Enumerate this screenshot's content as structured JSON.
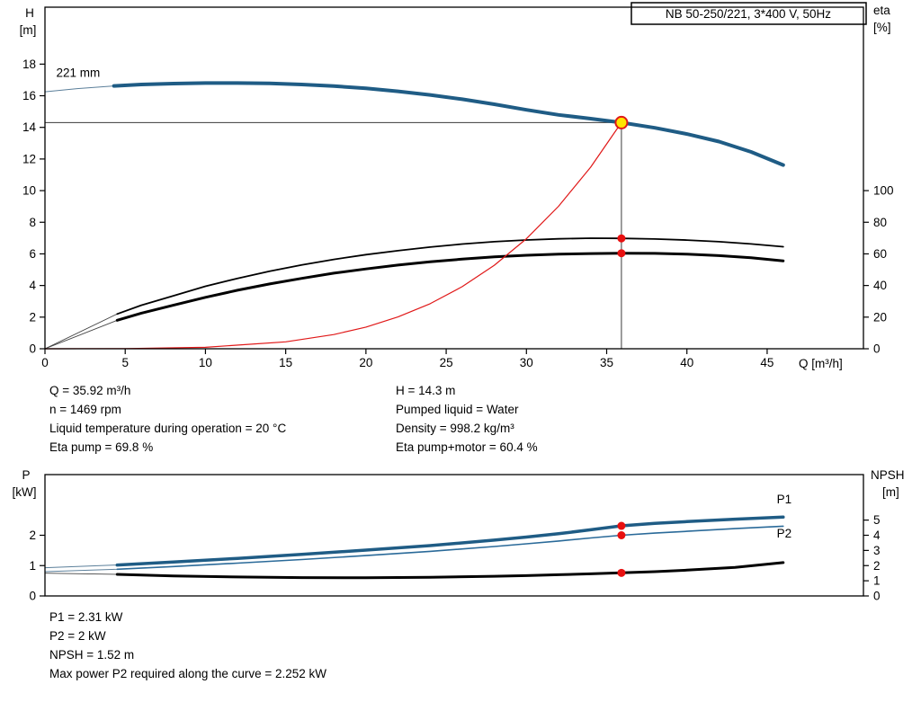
{
  "title_box": {
    "label": "NB 50-250/221, 3*400 V, 50Hz"
  },
  "info_top_left": {
    "lines": [
      "Q = 35.92 m³/h",
      "n = 1469 rpm",
      "Liquid temperature during operation = 20 °C",
      "Eta pump = 69.8 %"
    ]
  },
  "info_top_right": {
    "lines": [
      "H = 14.3 m",
      "Pumped liquid = Water",
      "Density = 998.2 kg/m³",
      "Eta pump+motor = 60.4 %"
    ]
  },
  "info_bottom": {
    "lines": [
      "P1 = 2.31 kW",
      "P2 = 2 kW",
      "NPSH = 1.52 m",
      "Max power P2 required along the curve = 2.252 kW"
    ]
  },
  "chart_data": [
    {
      "id": "hq-chart",
      "type": "line",
      "title": "NB 50-250/221, 3*400 V, 50Hz",
      "impeller_label": "221 mm",
      "x_axis": {
        "label": "Q [m³/h]",
        "min": 0,
        "max": 51,
        "ticks": [
          0,
          5,
          10,
          15,
          20,
          25,
          30,
          35,
          40,
          45
        ]
      },
      "left_axis": {
        "label": "H",
        "unit": "[m]",
        "min": 0,
        "max": 21.6,
        "ticks": [
          0,
          2,
          4,
          6,
          8,
          10,
          12,
          14,
          16,
          18
        ]
      },
      "right_axis": {
        "label": "eta",
        "unit": "[%]",
        "min": 0,
        "max": 100,
        "ticks": [
          0,
          20,
          40,
          60,
          80,
          100
        ],
        "scale_to_left": 0.1
      },
      "duty_point": {
        "q_m3h": 35.92,
        "h_m": 14.3,
        "eta_pump_pct": 69.8,
        "eta_pump_motor_pct": 60.4
      },
      "series": [
        {
          "name": "head-curve-leadin",
          "axis": "left",
          "color": "#5b7f9a",
          "width": 1,
          "points": [
            [
              0,
              16.25
            ],
            [
              2,
              16.45
            ],
            [
              4.3,
              16.62
            ]
          ]
        },
        {
          "name": "head-curve",
          "axis": "left",
          "color": "#1f5c85",
          "width": 4,
          "points": [
            [
              4.3,
              16.62
            ],
            [
              6,
              16.71
            ],
            [
              8,
              16.77
            ],
            [
              10,
              16.8
            ],
            [
              12,
              16.8
            ],
            [
              14,
              16.78
            ],
            [
              16,
              16.71
            ],
            [
              18,
              16.61
            ],
            [
              20,
              16.47
            ],
            [
              22,
              16.28
            ],
            [
              24,
              16.05
            ],
            [
              26,
              15.78
            ],
            [
              28,
              15.46
            ],
            [
              30,
              15.11
            ],
            [
              32,
              14.79
            ],
            [
              34,
              14.55
            ],
            [
              35.92,
              14.3
            ],
            [
              38,
              13.97
            ],
            [
              40,
              13.58
            ],
            [
              42,
              13.1
            ],
            [
              44,
              12.45
            ],
            [
              46,
              11.62
            ]
          ]
        },
        {
          "name": "eta-pump-leadin",
          "axis": "right",
          "color": "#444444",
          "width": 0.9,
          "points": [
            [
              0,
              0
            ],
            [
              4.5,
              22
            ]
          ]
        },
        {
          "name": "eta-pump-curve",
          "axis": "right",
          "color": "#000000",
          "width": 1.8,
          "points": [
            [
              4.5,
              22
            ],
            [
              6,
              27.5
            ],
            [
              8,
              33.5
            ],
            [
              10,
              39.5
            ],
            [
              12,
              44.5
            ],
            [
              14,
              49
            ],
            [
              16,
              53
            ],
            [
              18,
              56.5
            ],
            [
              20,
              59.5
            ],
            [
              22,
              62
            ],
            [
              24,
              64.3
            ],
            [
              26,
              66.2
            ],
            [
              28,
              67.7
            ],
            [
              30,
              68.8
            ],
            [
              32,
              69.5
            ],
            [
              34,
              69.9
            ],
            [
              35.92,
              69.8
            ],
            [
              38,
              69.4
            ],
            [
              40,
              68.7
            ],
            [
              42,
              67.7
            ],
            [
              44,
              66.3
            ],
            [
              46,
              64.5
            ]
          ]
        },
        {
          "name": "eta-pump-motor-leadin",
          "axis": "right",
          "color": "#444444",
          "width": 0.9,
          "points": [
            [
              0,
              0
            ],
            [
              4.5,
              18
            ]
          ]
        },
        {
          "name": "eta-pump-motor-curve",
          "axis": "right",
          "color": "#000000",
          "width": 3,
          "points": [
            [
              4.5,
              18
            ],
            [
              6,
              22.5
            ],
            [
              8,
              27.5
            ],
            [
              10,
              32.5
            ],
            [
              12,
              37
            ],
            [
              14,
              41
            ],
            [
              16,
              44.5
            ],
            [
              18,
              47.8
            ],
            [
              20,
              50.5
            ],
            [
              22,
              52.9
            ],
            [
              24,
              55
            ],
            [
              26,
              56.7
            ],
            [
              28,
              58.1
            ],
            [
              30,
              59.1
            ],
            [
              32,
              59.8
            ],
            [
              34,
              60.2
            ],
            [
              35.92,
              60.4
            ],
            [
              38,
              60.3
            ],
            [
              40,
              59.8
            ],
            [
              42,
              58.9
            ],
            [
              44,
              57.5
            ],
            [
              46,
              55.6
            ]
          ]
        },
        {
          "name": "system-curve",
          "axis": "left",
          "color": "#e01818",
          "width": 1.2,
          "points": [
            [
              0,
              0
            ],
            [
              5,
              0.01
            ],
            [
              10,
              0.09
            ],
            [
              15,
              0.44
            ],
            [
              18,
              0.9
            ],
            [
              20,
              1.37
            ],
            [
              22,
              2.01
            ],
            [
              24,
              2.85
            ],
            [
              26,
              3.93
            ],
            [
              28,
              5.28
            ],
            [
              30,
              6.96
            ],
            [
              32,
              9.01
            ],
            [
              34,
              11.48
            ],
            [
              35.92,
              14.3
            ]
          ]
        }
      ],
      "guides": [
        {
          "type": "h",
          "value": 14.3,
          "q1": 0,
          "q2": 35.92
        },
        {
          "type": "v",
          "q": 35.92,
          "v1": 0,
          "v2": 14.3
        }
      ],
      "markers": [
        {
          "name": "duty-point",
          "q": 35.92,
          "value": 14.3,
          "axis": "left",
          "r": 6.5,
          "fill": "#ffe400",
          "stroke": "#e01818",
          "sw": 2
        },
        {
          "name": "eta-pump-dot",
          "q": 35.92,
          "value": 69.8,
          "axis": "right",
          "r": 4.5,
          "fill": "#e81010"
        },
        {
          "name": "eta-pump-motor-dot",
          "q": 35.92,
          "value": 60.4,
          "axis": "right",
          "r": 4.5,
          "fill": "#e81010"
        }
      ],
      "annotations": [
        {
          "text": "221 mm",
          "q": 0.7,
          "value": 17.2,
          "axis": "left",
          "color": "#000000"
        }
      ]
    },
    {
      "id": "pq-chart",
      "type": "line",
      "x_axis": {
        "label": "",
        "min": 0,
        "max": 51,
        "ticks": []
      },
      "left_axis": {
        "label": "P",
        "unit": "[kW]",
        "min": 0,
        "max": 4,
        "ticks": [
          0,
          1,
          2
        ]
      },
      "right_axis": {
        "label": "NPSH",
        "unit": "[m]",
        "min": 0,
        "max": 5,
        "ticks": [
          0,
          1,
          2,
          3,
          4,
          5
        ],
        "scale_to_left": 0.5
      },
      "duty_values": {
        "p1_kw": 2.31,
        "p2_kw": 2.0,
        "npsh_m": 1.52
      },
      "series": [
        {
          "name": "p1-leadin",
          "axis": "left",
          "color": "#5b7f9a",
          "width": 1,
          "points": [
            [
              0,
              0.93
            ],
            [
              4.5,
              1.02
            ]
          ]
        },
        {
          "name": "p1-curve",
          "axis": "left",
          "color": "#1f5c85",
          "width": 3.5,
          "points": [
            [
              4.5,
              1.02
            ],
            [
              8,
              1.12
            ],
            [
              12,
              1.24
            ],
            [
              16,
              1.37
            ],
            [
              20,
              1.51
            ],
            [
              24,
              1.66
            ],
            [
              28,
              1.84
            ],
            [
              30,
              1.94
            ],
            [
              32,
              2.05
            ],
            [
              34,
              2.18
            ],
            [
              35.92,
              2.31
            ],
            [
              38,
              2.39
            ],
            [
              40,
              2.45
            ],
            [
              43,
              2.53
            ],
            [
              46,
              2.6
            ]
          ]
        },
        {
          "name": "p2-leadin",
          "axis": "left",
          "color": "#5b7f9a",
          "width": 0.9,
          "points": [
            [
              0,
              0.8
            ],
            [
              4.5,
              0.88
            ]
          ]
        },
        {
          "name": "p2-curve",
          "axis": "left",
          "color": "#2a6a99",
          "width": 1.6,
          "points": [
            [
              4.5,
              0.88
            ],
            [
              8,
              0.97
            ],
            [
              12,
              1.08
            ],
            [
              16,
              1.2
            ],
            [
              20,
              1.33
            ],
            [
              24,
              1.47
            ],
            [
              28,
              1.63
            ],
            [
              30,
              1.72
            ],
            [
              32,
              1.81
            ],
            [
              34,
              1.91
            ],
            [
              35.92,
              2.0
            ],
            [
              38,
              2.07
            ],
            [
              40,
              2.13
            ],
            [
              43,
              2.22
            ],
            [
              46,
              2.3
            ]
          ]
        },
        {
          "name": "npsh-leadin",
          "axis": "right",
          "color": "#444444",
          "width": 0.9,
          "points": [
            [
              0,
              1.5
            ],
            [
              4.5,
              1.42
            ]
          ]
        },
        {
          "name": "npsh-curve",
          "axis": "right",
          "color": "#000000",
          "width": 3,
          "points": [
            [
              4.5,
              1.42
            ],
            [
              8,
              1.32
            ],
            [
              12,
              1.25
            ],
            [
              16,
              1.21
            ],
            [
              20,
              1.2
            ],
            [
              24,
              1.23
            ],
            [
              28,
              1.3
            ],
            [
              30,
              1.34
            ],
            [
              32,
              1.4
            ],
            [
              34,
              1.46
            ],
            [
              35.92,
              1.52
            ],
            [
              38,
              1.6
            ],
            [
              40,
              1.7
            ],
            [
              43,
              1.88
            ],
            [
              46,
              2.2
            ]
          ]
        }
      ],
      "guides": [],
      "markers": [
        {
          "name": "p1-dot",
          "q": 35.92,
          "value": 2.31,
          "axis": "left",
          "r": 4.5,
          "fill": "#e81010"
        },
        {
          "name": "p2-dot",
          "q": 35.92,
          "value": 2.0,
          "axis": "left",
          "r": 4.5,
          "fill": "#e81010"
        },
        {
          "name": "npsh-dot",
          "q": 35.92,
          "value": 1.52,
          "axis": "right",
          "r": 4.5,
          "fill": "#e81010"
        }
      ],
      "annotations": [
        {
          "text": "P1",
          "q": 45.6,
          "value": 3.05,
          "axis": "left",
          "color": "#1f5c85"
        },
        {
          "text": "P2",
          "q": 45.6,
          "value": 1.93,
          "axis": "left",
          "color": "#1f5c85"
        }
      ]
    }
  ]
}
